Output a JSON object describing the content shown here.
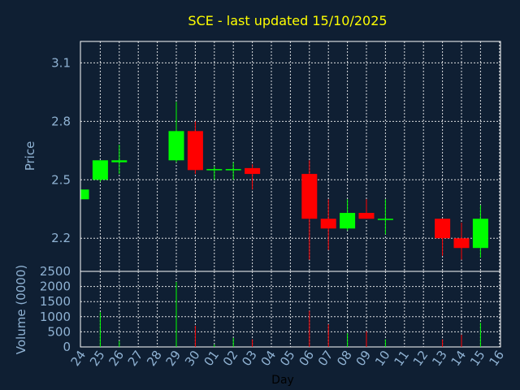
{
  "chart_data": {
    "type": "candlestick",
    "title": "SCE - last updated 15/10/2025",
    "xlabel": "Day",
    "grid": true,
    "colors": {
      "up": "#00ff00",
      "down": "#ff0000",
      "background": "#0f1f33",
      "axis_text": "#8fb2d3",
      "title": "#ffff00"
    },
    "x_ticks": [
      "24",
      "25",
      "26",
      "27",
      "28",
      "29",
      "30",
      "01",
      "02",
      "03",
      "04",
      "05",
      "06",
      "07",
      "08",
      "09",
      "10",
      "11",
      "12",
      "13",
      "14",
      "15",
      "16"
    ],
    "price_panel": {
      "ylabel": "Price",
      "ylim": [
        2.03,
        3.21
      ],
      "y_ticks": [
        2.2,
        2.5,
        2.8,
        3.1
      ],
      "y_tick_labels": [
        "2.2",
        "2.5",
        "2.8",
        "3.1"
      ]
    },
    "volume_panel": {
      "ylabel": "Volume (0000)",
      "ylim": [
        0,
        2500
      ],
      "y_ticks": [
        0,
        500,
        1000,
        1500,
        2000,
        2500
      ],
      "y_tick_labels": [
        "0",
        "500",
        "1000",
        "1500",
        "2000",
        "2500"
      ]
    },
    "candles": [
      {
        "day": "24",
        "open": 2.4,
        "high": 2.45,
        "low": 2.4,
        "close": 2.45
      },
      {
        "day": "25",
        "open": 2.5,
        "high": 2.6,
        "low": 2.49,
        "close": 2.6
      },
      {
        "day": "26",
        "open": 2.59,
        "high": 2.68,
        "low": 2.53,
        "close": 2.6
      },
      {
        "day": "29",
        "open": 2.6,
        "high": 2.9,
        "low": 2.59,
        "close": 2.75
      },
      {
        "day": "30",
        "open": 2.75,
        "high": 2.8,
        "low": 2.53,
        "close": 2.55
      },
      {
        "day": "01",
        "open": 2.55,
        "high": 2.57,
        "low": 2.5,
        "close": 2.555
      },
      {
        "day": "02",
        "open": 2.55,
        "high": 2.59,
        "low": 2.5,
        "close": 2.555
      },
      {
        "day": "03",
        "open": 2.56,
        "high": 2.58,
        "low": 2.45,
        "close": 2.53
      },
      {
        "day": "06",
        "open": 2.53,
        "high": 2.6,
        "low": 2.09,
        "close": 2.3
      },
      {
        "day": "07",
        "open": 2.3,
        "high": 2.4,
        "low": 2.14,
        "close": 2.25
      },
      {
        "day": "08",
        "open": 2.25,
        "high": 2.4,
        "low": 2.24,
        "close": 2.33
      },
      {
        "day": "09",
        "open": 2.33,
        "high": 2.4,
        "low": 2.3,
        "close": 2.3
      },
      {
        "day": "10",
        "open": 2.3,
        "high": 2.4,
        "low": 2.22,
        "close": 2.3
      },
      {
        "day": "13",
        "open": 2.3,
        "high": 2.3,
        "low": 2.11,
        "close": 2.2
      },
      {
        "day": "14",
        "open": 2.2,
        "high": 2.28,
        "low": 2.09,
        "close": 2.15
      },
      {
        "day": "15",
        "open": 2.15,
        "high": 2.37,
        "low": 2.1,
        "close": 2.3
      }
    ],
    "volume": [
      {
        "day": "24",
        "value": 0,
        "color": "up"
      },
      {
        "day": "25",
        "value": 1150,
        "color": "up"
      },
      {
        "day": "26",
        "value": 200,
        "color": "up"
      },
      {
        "day": "29",
        "value": 2150,
        "color": "up"
      },
      {
        "day": "30",
        "value": 700,
        "color": "down"
      },
      {
        "day": "01",
        "value": 80,
        "color": "up"
      },
      {
        "day": "02",
        "value": 300,
        "color": "up"
      },
      {
        "day": "03",
        "value": 250,
        "color": "down"
      },
      {
        "day": "06",
        "value": 1200,
        "color": "down"
      },
      {
        "day": "07",
        "value": 750,
        "color": "down"
      },
      {
        "day": "08",
        "value": 450,
        "color": "up"
      },
      {
        "day": "09",
        "value": 520,
        "color": "down"
      },
      {
        "day": "10",
        "value": 250,
        "color": "up"
      },
      {
        "day": "13",
        "value": 250,
        "color": "down"
      },
      {
        "day": "14",
        "value": 400,
        "color": "down"
      },
      {
        "day": "15",
        "value": 800,
        "color": "up"
      }
    ]
  }
}
